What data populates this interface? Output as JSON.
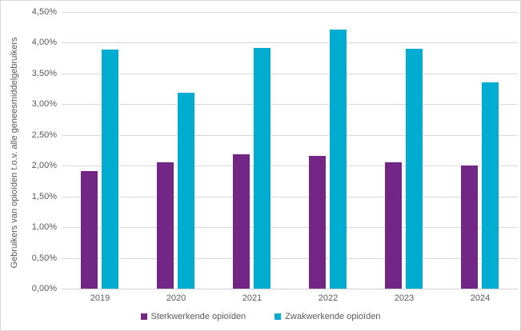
{
  "chart_data": {
    "type": "bar",
    "title": "",
    "categories": [
      "2019",
      "2020",
      "2021",
      "2022",
      "2023",
      "2024"
    ],
    "series": [
      {
        "name": "Sterkwerkende opioïden",
        "color": "#722787",
        "values": [
          1.91,
          2.06,
          2.18,
          2.16,
          2.05,
          2.0
        ]
      },
      {
        "name": "Zwakwerkende opioïden",
        "color": "#00ADD0",
        "values": [
          3.89,
          3.18,
          3.92,
          4.22,
          3.9,
          3.35
        ]
      }
    ],
    "xlabel": "",
    "ylabel": "Gebruikers van opioïden t.o.v. alle geneesmiddelgebruikers",
    "ylim": [
      0,
      4.5
    ],
    "ytick_step": 0.5,
    "ytick_labels": [
      "4,50%",
      "4,00%",
      "3,50%",
      "3,00%",
      "2,50%",
      "2,00%",
      "1,50%",
      "1,00%",
      "0,50%",
      "0,00%"
    ],
    "grid": true,
    "legend_position": "bottom"
  },
  "colors": {
    "axis_text": "#595959",
    "gridline": "#D9D9D9",
    "border": "#D7D7D7",
    "background": "#FFFFFF"
  }
}
